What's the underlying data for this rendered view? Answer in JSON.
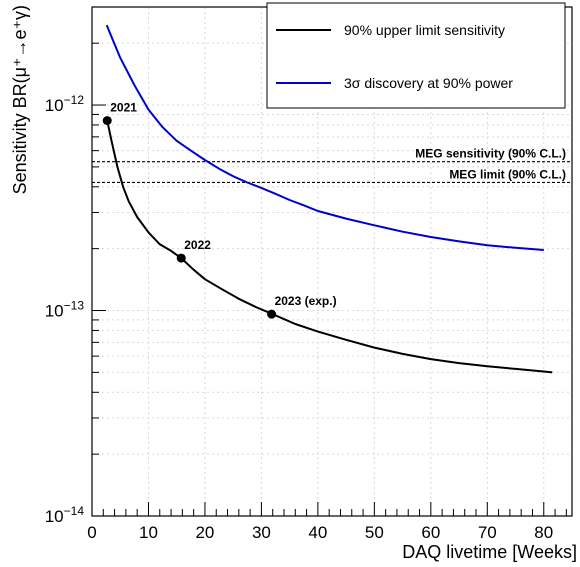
{
  "chart_data": {
    "type": "line",
    "title": "",
    "xlabel": "DAQ livetime [Weeks]",
    "ylabel": "Sensitivity BR(μ⁺→e⁺γ)",
    "xlim": [
      0,
      85
    ],
    "ylim": [
      1e-14,
      3e-12
    ],
    "yscale": "log",
    "x_ticks": [
      0,
      10,
      20,
      30,
      40,
      50,
      60,
      70,
      80
    ],
    "y_tick_labels": [
      {
        "value": 1e-12,
        "base": "10",
        "exp": "−12"
      },
      {
        "value": 1e-13,
        "base": "10",
        "exp": "−13"
      },
      {
        "value": 1e-14,
        "base": "10",
        "exp": "−14"
      }
    ],
    "grid": true,
    "legend_position": "top-right",
    "series": [
      {
        "name": "90% upper limit sensitivity",
        "color": "#000000",
        "x": [
          2.7,
          3.5,
          4.5,
          5.5,
          6.5,
          8,
          10,
          12,
          14,
          15.8,
          18,
          20,
          23,
          26,
          29,
          32,
          36,
          40,
          45,
          50,
          55,
          60,
          65,
          70,
          75,
          80,
          81.5
        ],
        "y": [
          8.4e-13,
          6.6e-13,
          5e-13,
          4e-13,
          3.4e-13,
          2.85e-13,
          2.4e-13,
          2.1e-13,
          1.95e-13,
          1.8e-13,
          1.58e-13,
          1.42e-13,
          1.27e-13,
          1.14e-13,
          1.04e-13,
          9.6e-14,
          8.6e-14,
          7.9e-14,
          7.2e-14,
          6.6e-14,
          6.15e-14,
          5.8e-14,
          5.55e-14,
          5.35e-14,
          5.2e-14,
          5.05e-14,
          5e-14
        ]
      },
      {
        "name": "3σ discovery at 90% power",
        "color": "#0000cc",
        "x": [
          2.6,
          5,
          7.5,
          10,
          12.5,
          15,
          17.5,
          20,
          22.5,
          25,
          27.5,
          30,
          32.5,
          35,
          37.5,
          40,
          45,
          50,
          55,
          60,
          65,
          70,
          75,
          80
        ],
        "y": [
          2.45e-12,
          1.7e-12,
          1.25e-12,
          9.5e-13,
          7.8e-13,
          6.7e-13,
          6e-13,
          5.4e-13,
          4.9e-13,
          4.5e-13,
          4.2e-13,
          3.95e-13,
          3.7e-13,
          3.45e-13,
          3.25e-13,
          3.05e-13,
          2.8e-13,
          2.6e-13,
          2.42e-13,
          2.28e-13,
          2.17e-13,
          2.08e-13,
          2.02e-13,
          1.97e-13
        ]
      }
    ],
    "points": [
      {
        "x": 2.7,
        "y": 8.4e-13,
        "label": "2021"
      },
      {
        "x": 15.8,
        "y": 1.8e-13,
        "label": "2022"
      },
      {
        "x": 31.8,
        "y": 9.6e-14,
        "label": "2023 (exp.)"
      }
    ],
    "reference_lines": [
      {
        "y": 5.3e-13,
        "label": "MEG sensitivity (90% C.L.)"
      },
      {
        "y": 4.2e-13,
        "label": "MEG limit (90% C.L.)"
      }
    ]
  }
}
